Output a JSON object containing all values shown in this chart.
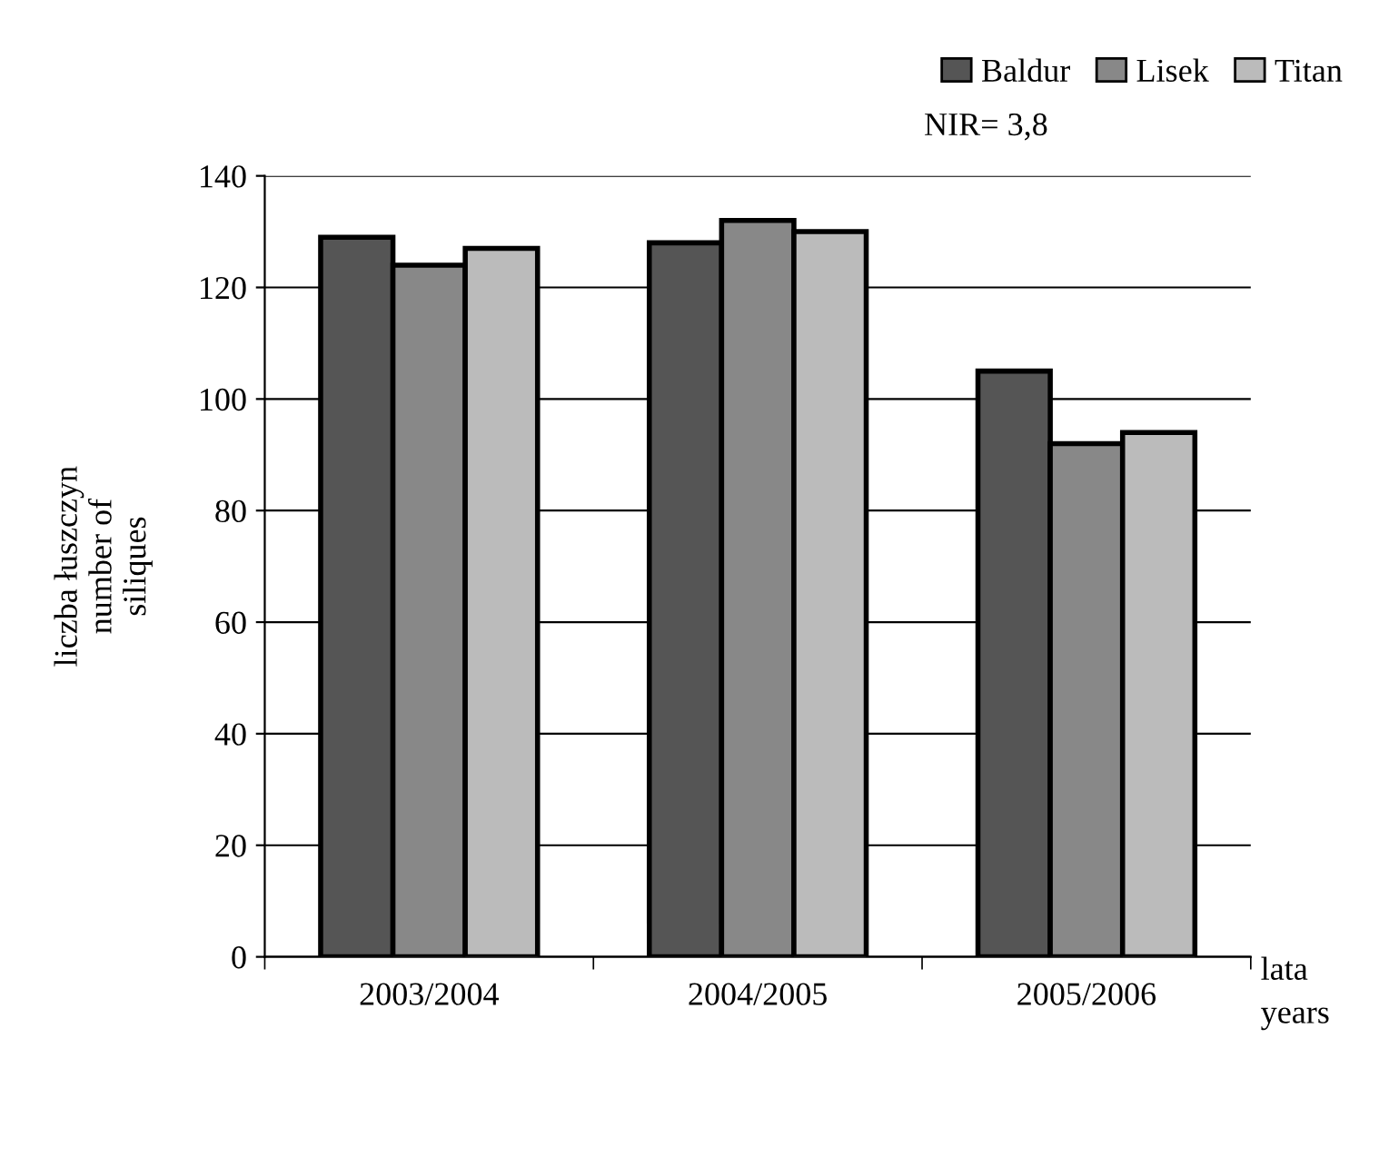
{
  "chart_data": {
    "type": "bar",
    "ylabel": "liczba łuszczyn\nnumber of\nsiliques",
    "xlabel": "lata\nyears",
    "categories": [
      "2003/2004",
      "2004/2005",
      "2005/2006"
    ],
    "series": [
      {
        "name": "Baldur",
        "color": "#555555",
        "values": [
          129,
          128,
          105
        ]
      },
      {
        "name": "Lisek",
        "color": "#888888",
        "values": [
          124,
          132,
          92
        ]
      },
      {
        "name": "Titan",
        "color": "#bbbbbb",
        "values": [
          127,
          130,
          94
        ]
      }
    ],
    "ylim": [
      0,
      140
    ],
    "yticks": [
      0,
      20,
      40,
      60,
      80,
      100,
      120,
      140
    ],
    "grid": "y",
    "legend": "top right",
    "annotations": [
      "NIR= 3,8"
    ]
  }
}
